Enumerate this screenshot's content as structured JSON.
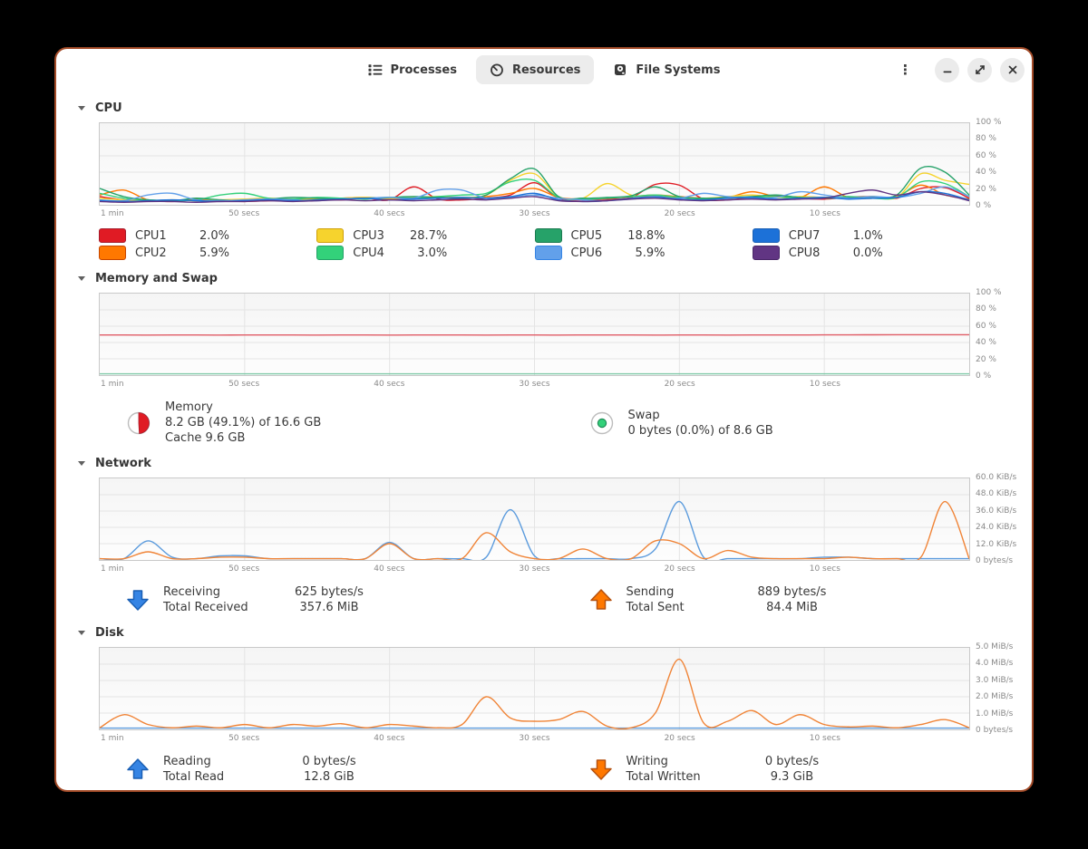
{
  "window": {
    "border_color": "#a34b28"
  },
  "header": {
    "tabs": [
      {
        "label": "Processes",
        "icon": "processes-list-icon",
        "active": false
      },
      {
        "label": "Resources",
        "icon": "resources-speedometer-icon",
        "active": true
      },
      {
        "label": "File Systems",
        "icon": "file-systems-drive-icon",
        "active": false
      }
    ],
    "menu_glyph": "⋮",
    "close_glyph": "✕"
  },
  "chart_data": [
    {
      "id": "cpu",
      "type": "line",
      "title": "CPU",
      "ymax": 100,
      "legend": true,
      "x_ticks": [
        "1 min",
        "50 secs",
        "40 secs",
        "30 secs",
        "20 secs",
        "10 secs"
      ],
      "y_ticks": [
        "100 %",
        "80 %",
        "60 %",
        "40 %",
        "20 %",
        "0 %"
      ],
      "series": [
        {
          "name": "CPU1",
          "value": "2.0%",
          "color": "#e01b24",
          "border": "#a51d2d",
          "values": [
            10,
            6,
            5,
            4,
            6,
            5,
            4,
            5,
            6,
            7,
            6,
            8,
            6,
            22,
            7,
            6,
            8,
            12,
            27,
            8,
            6,
            7,
            9,
            25,
            24,
            7,
            6,
            9,
            11,
            8,
            7,
            9,
            10,
            8,
            20,
            21,
            8
          ]
        },
        {
          "name": "CPU2",
          "value": "5.9%",
          "color": "#ff7800",
          "border": "#c64600",
          "values": [
            12,
            18,
            6,
            5,
            7,
            6,
            5,
            6,
            7,
            6,
            8,
            9,
            7,
            8,
            9,
            8,
            10,
            14,
            20,
            9,
            7,
            8,
            10,
            12,
            10,
            8,
            9,
            16,
            10,
            9,
            22,
            9,
            8,
            10,
            24,
            12,
            7
          ]
        },
        {
          "name": "CPU3",
          "value": "28.7%",
          "color": "#f6d32d",
          "border": "#cfa008",
          "values": [
            8,
            6,
            5,
            6,
            5,
            6,
            7,
            8,
            6,
            7,
            8,
            9,
            8,
            9,
            10,
            9,
            12,
            30,
            38,
            10,
            8,
            26,
            12,
            10,
            9,
            8,
            10,
            12,
            9,
            10,
            9,
            8,
            10,
            9,
            38,
            30,
            25
          ]
        },
        {
          "name": "CPU4",
          "value": "3.0%",
          "color": "#33d17a",
          "border": "#26a269",
          "values": [
            14,
            8,
            6,
            5,
            6,
            12,
            14,
            8,
            7,
            9,
            8,
            7,
            9,
            8,
            10,
            12,
            14,
            28,
            30,
            9,
            7,
            8,
            10,
            12,
            9,
            7,
            8,
            9,
            10,
            8,
            9,
            10,
            8,
            9,
            28,
            26,
            10
          ]
        },
        {
          "name": "CPU5",
          "value": "18.8%",
          "color": "#26a269",
          "border": "#1a7a4f",
          "values": [
            20,
            10,
            6,
            5,
            8,
            6,
            5,
            7,
            9,
            8,
            7,
            8,
            9,
            10,
            9,
            8,
            12,
            32,
            44,
            10,
            8,
            9,
            11,
            22,
            10,
            8,
            9,
            10,
            12,
            9,
            8,
            9,
            10,
            12,
            45,
            40,
            12
          ]
        },
        {
          "name": "CPU6",
          "value": "5.9%",
          "color": "#62a0ea",
          "border": "#3584e4",
          "values": [
            6,
            5,
            12,
            14,
            6,
            5,
            6,
            7,
            6,
            5,
            7,
            8,
            9,
            8,
            18,
            18,
            8,
            9,
            12,
            8,
            6,
            5,
            7,
            9,
            8,
            14,
            10,
            8,
            9,
            16,
            12,
            8,
            10,
            9,
            14,
            22,
            10
          ]
        },
        {
          "name": "CPU7",
          "value": "1.0%",
          "color": "#1c71d8",
          "border": "#1a5fb4",
          "values": [
            5,
            4,
            5,
            6,
            5,
            4,
            5,
            6,
            5,
            6,
            7,
            8,
            6,
            7,
            8,
            9,
            8,
            10,
            14,
            6,
            4,
            5,
            8,
            10,
            7,
            6,
            8,
            9,
            7,
            8,
            9,
            7,
            8,
            9,
            16,
            14,
            6
          ]
        },
        {
          "name": "CPU8",
          "value": "0.0%",
          "color": "#613583",
          "border": "#4a2868",
          "values": [
            4,
            3,
            4,
            4,
            3,
            4,
            4,
            5,
            4,
            5,
            6,
            5,
            6,
            5,
            6,
            7,
            6,
            8,
            10,
            5,
            4,
            5,
            7,
            8,
            6,
            5,
            6,
            7,
            6,
            7,
            8,
            14,
            18,
            12,
            16,
            12,
            5
          ]
        }
      ]
    },
    {
      "id": "memory",
      "type": "line",
      "title": "Memory and Swap",
      "ymax": 100,
      "x_ticks": [
        "1 min",
        "50 secs",
        "40 secs",
        "30 secs",
        "20 secs",
        "10 secs"
      ],
      "y_ticks": [
        "100 %",
        "80 %",
        "60 %",
        "40 %",
        "20 %",
        "0 %"
      ],
      "series": [
        {
          "name": "Memory",
          "color": "#e05c66",
          "values": [
            49.2,
            49.2,
            49.1,
            49.2,
            49.2,
            49.1,
            49.2,
            49.2,
            49.2,
            49.1,
            49.2,
            49.2,
            49.1,
            49.2,
            49.2,
            49.2,
            49.1,
            49.2,
            49.2,
            49.1,
            49.2,
            49.2,
            49.2,
            49.1,
            49.2,
            49.2,
            49.1,
            49.2,
            49.2,
            49.2,
            49.3,
            49.4,
            49.5,
            49.6,
            49.6,
            49.6,
            49.6
          ]
        },
        {
          "name": "Swap",
          "color": "#7fc9a8",
          "values": [
            0.6,
            0.6,
            0.6,
            0.6,
            0.6,
            0.6,
            0.6,
            0.6,
            0.6,
            0.6,
            0.6,
            0.6,
            0.6,
            0.6,
            0.6,
            0.6,
            0.6,
            0.6,
            0.6,
            0.6,
            0.6,
            0.6,
            0.6,
            0.6,
            0.6,
            0.6,
            0.6,
            0.6,
            0.6,
            0.6,
            0.6,
            0.6,
            0.6,
            0.6,
            0.6,
            0.6,
            0.6
          ]
        }
      ],
      "stats": [
        {
          "kind": "pie",
          "icon": "memory-pie-icon",
          "percent": 49.1,
          "color": "#e01b24",
          "border": "#a51d2d",
          "title": "Memory",
          "lines": [
            "8.2 GB (49.1%) of 16.6 GB",
            "Cache 9.6 GB"
          ]
        },
        {
          "kind": "dot",
          "icon": "swap-dot-icon",
          "color": "#33d17a",
          "border": "#1f8b57",
          "title": "Swap",
          "lines": [
            "0 bytes (0.0%) of 8.6 GB"
          ]
        }
      ]
    },
    {
      "id": "network",
      "type": "line",
      "title": "Network",
      "ymax": 60,
      "x_ticks": [
        "1 min",
        "50 secs",
        "40 secs",
        "30 secs",
        "20 secs",
        "10 secs"
      ],
      "y_ticks": [
        "60.0 KiB/s",
        "48.0 KiB/s",
        "36.0 KiB/s",
        "24.0 KiB/s",
        "12.0 KiB/s",
        "0 bytes/s"
      ],
      "series": [
        {
          "name": "Receiving",
          "color": "#5b9bdd",
          "values": [
            0.5,
            1,
            14,
            2,
            0.5,
            3,
            3,
            0.5,
            0.5,
            0.5,
            0.5,
            1,
            13,
            1,
            0.5,
            0.5,
            2,
            37,
            3,
            0.5,
            1,
            0.5,
            0.5,
            8,
            43,
            2,
            1,
            0.5,
            0.5,
            0.5,
            2,
            2,
            0.5,
            0.5,
            1,
            0.5,
            0.5
          ]
        },
        {
          "name": "Sending",
          "color": "#f08437",
          "values": [
            0.5,
            1,
            6,
            1,
            0.5,
            2,
            2,
            0.5,
            0.5,
            0.5,
            0.5,
            1,
            12,
            1,
            0.5,
            1,
            20,
            6,
            1,
            0.5,
            8,
            1,
            0.5,
            14,
            12,
            1,
            7,
            2,
            0.5,
            0.5,
            1,
            2,
            0.5,
            0.5,
            2,
            43,
            1
          ]
        }
      ],
      "stats": [
        {
          "kind": "arrow",
          "icon": "receiving-down-arrow-icon",
          "direction": "down",
          "color": "#3584e4",
          "border": "#1a5fb4",
          "rows": [
            {
              "label": "Receiving",
              "value": "625 bytes/s"
            },
            {
              "label": "Total Received",
              "value": "357.6 MiB"
            }
          ]
        },
        {
          "kind": "arrow",
          "icon": "sending-up-arrow-icon",
          "direction": "up",
          "color": "#ff7800",
          "border": "#b5510f",
          "rows": [
            {
              "label": "Sending",
              "value": "889 bytes/s"
            },
            {
              "label": "Total Sent",
              "value": "84.4 MiB"
            }
          ]
        }
      ]
    },
    {
      "id": "disk",
      "type": "line",
      "title": "Disk",
      "ymax": 5,
      "x_ticks": [
        "1 min",
        "50 secs",
        "40 secs",
        "30 secs",
        "20 secs",
        "10 secs"
      ],
      "y_ticks": [
        "5.0 MiB/s",
        "4.0 MiB/s",
        "3.0 MiB/s",
        "2.0 MiB/s",
        "1.0 MiB/s",
        "0 bytes/s"
      ],
      "series": [
        {
          "name": "Reading",
          "color": "#5b9bdd",
          "values": [
            0.03,
            0.03,
            0.03,
            0.03,
            0.03,
            0.03,
            0.03,
            0.03,
            0.03,
            0.03,
            0.03,
            0.03,
            0.03,
            0.03,
            0.03,
            0.03,
            0.03,
            0.03,
            0.03,
            0.03,
            0.03,
            0.03,
            0.03,
            0.03,
            0.03,
            0.03,
            0.03,
            0.03,
            0.03,
            0.03,
            0.03,
            0.03,
            0.03,
            0.03,
            0.03,
            0.03,
            0.03
          ]
        },
        {
          "name": "Writing",
          "color": "#f08437",
          "values": [
            0.1,
            0.9,
            0.3,
            0.1,
            0.2,
            0.1,
            0.3,
            0.1,
            0.3,
            0.2,
            0.35,
            0.1,
            0.3,
            0.2,
            0.1,
            0.3,
            2.0,
            0.7,
            0.5,
            0.6,
            1.1,
            0.2,
            0.1,
            1.0,
            4.3,
            0.4,
            0.5,
            1.15,
            0.3,
            0.9,
            0.3,
            0.15,
            0.2,
            0.1,
            0.3,
            0.6,
            0.1
          ]
        }
      ],
      "stats": [
        {
          "kind": "arrow",
          "icon": "reading-up-arrow-icon",
          "direction": "up",
          "color": "#3584e4",
          "border": "#1a5fb4",
          "rows": [
            {
              "label": "Reading",
              "value": "0 bytes/s"
            },
            {
              "label": "Total Read",
              "value": "12.8 GiB"
            }
          ]
        },
        {
          "kind": "arrow",
          "icon": "writing-down-arrow-icon",
          "direction": "down",
          "color": "#ff7800",
          "border": "#b5510f",
          "rows": [
            {
              "label": "Writing",
              "value": "0 bytes/s"
            },
            {
              "label": "Total Written",
              "value": "9.3 GiB"
            }
          ]
        }
      ]
    }
  ]
}
